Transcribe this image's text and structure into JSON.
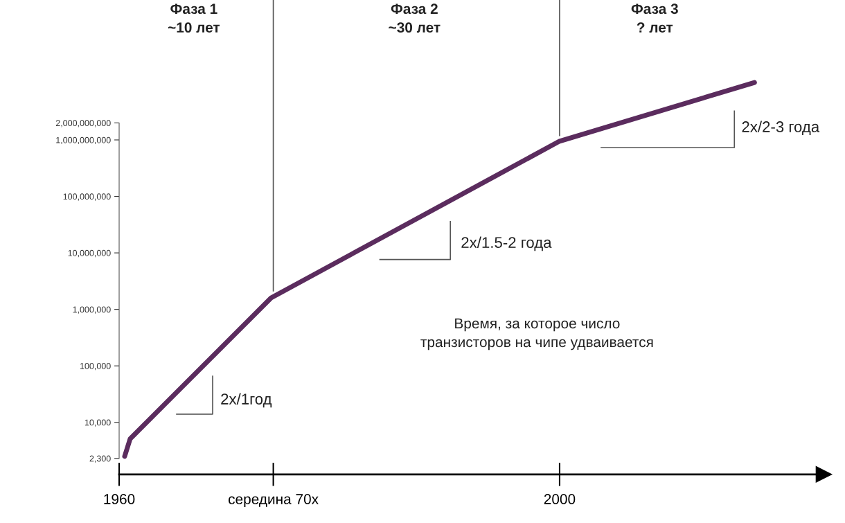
{
  "chart_data": {
    "type": "line",
    "log": "y",
    "grid": false,
    "x": [
      1960.5,
      1961.0,
      1973.8,
      2000,
      2017.7
    ],
    "series": [
      {
        "color": "#5b2c5e",
        "values": [
          2500,
          5100,
          1600000,
          950000000,
          10400000000
        ]
      }
    ],
    "xlim": [
      1960,
      2024
    ],
    "ylim": [
      1200,
      300000000000
    ],
    "xticks": [
      1960,
      {
        "value": 1974,
        "label": "середина 70х"
      },
      2000
    ],
    "yticks": [
      {
        "value": 2300,
        "label": "2,300"
      },
      {
        "value": 10000,
        "label": "10,000"
      },
      {
        "value": 100000,
        "label": "100,000"
      },
      {
        "value": 1000000,
        "label": "1,000,000"
      },
      {
        "value": 10000000,
        "label": "10,000,000"
      },
      {
        "value": 100000000,
        "label": "100,000,000"
      },
      {
        "value": 1000000000,
        "label": "1,000,000,000"
      },
      {
        "value": 2000000000,
        "label": "2,000,000,000"
      }
    ],
    "ref_lines": [
      {
        "axis": "x",
        "value": 1974,
        "color": "#555555"
      },
      {
        "axis": "x",
        "value": 2000,
        "color": "#555555"
      }
    ],
    "annotations": [
      "Фаза 1\n~10 лет",
      "Фаза 2\n~30 лет",
      "Фаза 3\n? лет",
      "2x/1год",
      "2x/1.5-2 года",
      "2x/2-3 года",
      "Время, за которое число\nтранзисторов на чипе удваивается"
    ]
  }
}
